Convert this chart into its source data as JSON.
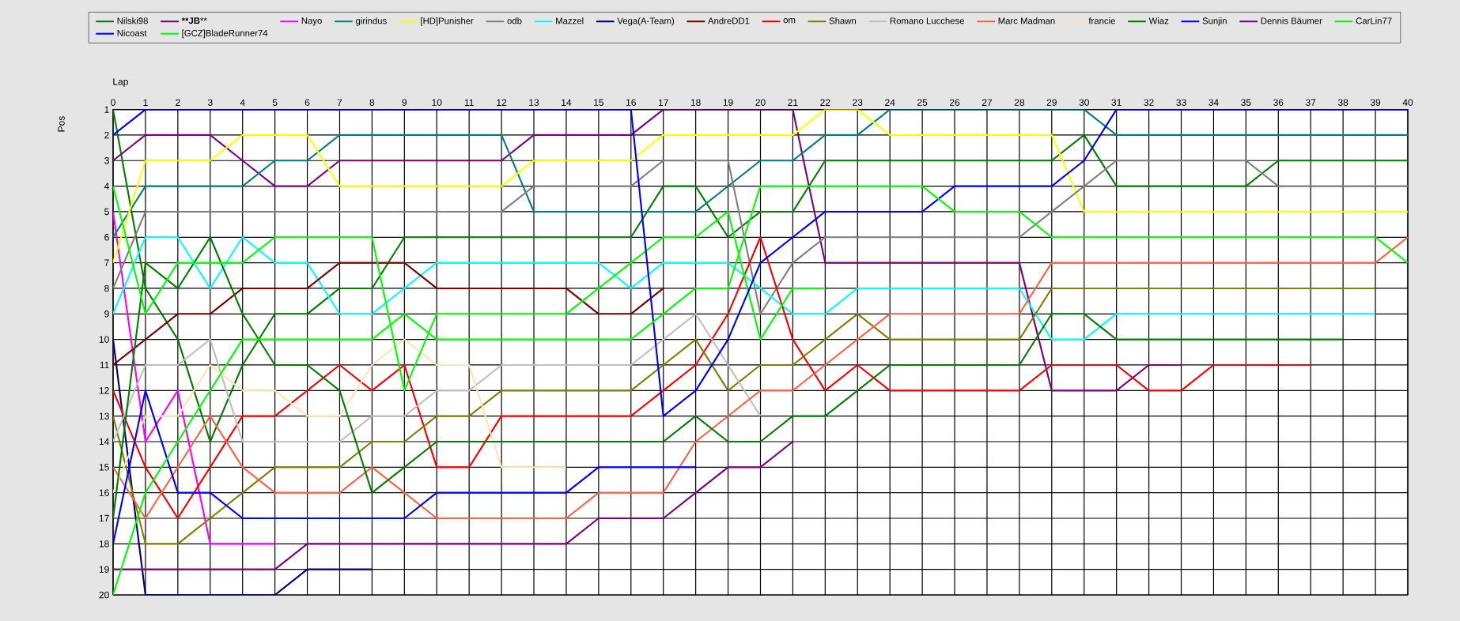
{
  "chart_data": {
    "type": "line",
    "xlabel": "Lap",
    "ylabel": "Pos",
    "x": [
      0,
      1,
      2,
      3,
      4,
      5,
      6,
      7,
      8,
      9,
      10,
      11,
      12,
      13,
      14,
      15,
      16,
      17,
      18,
      19,
      20,
      21,
      22,
      23,
      24,
      25,
      26,
      27,
      28,
      29,
      30,
      31,
      32,
      33,
      34,
      35,
      36,
      37,
      38,
      39,
      40
    ],
    "xlim": [
      0,
      40
    ],
    "xticks": [
      0,
      1,
      2,
      3,
      4,
      5,
      6,
      7,
      8,
      9,
      10,
      11,
      12,
      13,
      14,
      15,
      16,
      17,
      18,
      19,
      20,
      21,
      22,
      23,
      24,
      25,
      26,
      27,
      28,
      29,
      30,
      31,
      32,
      33,
      34,
      35,
      36,
      37,
      38,
      39,
      40
    ],
    "ylim": [
      20,
      1
    ],
    "yticks": [
      1,
      2,
      3,
      4,
      5,
      6,
      7,
      8,
      9,
      10,
      11,
      12,
      13,
      14,
      15,
      16,
      17,
      18,
      19,
      20
    ],
    "grid": true,
    "legend": "top",
    "marker": "none",
    "series": [
      {
        "name": "Nilski98",
        "color": "#008000",
        "values": [
          1,
          8,
          10,
          14,
          11,
          9,
          9,
          8,
          8,
          6,
          6,
          6,
          6,
          6,
          6,
          6,
          6,
          4,
          4,
          6,
          5,
          5,
          3,
          3,
          3,
          3,
          3,
          3,
          3,
          3,
          2,
          4,
          4,
          4,
          4,
          4,
          3,
          3,
          3,
          3,
          3
        ]
      },
      {
        "name": "****JB****",
        "color": "#800080",
        "values": [
          3,
          2,
          2,
          2,
          3,
          4,
          4,
          3,
          3,
          3,
          3,
          3,
          3,
          2,
          2,
          2,
          2,
          1,
          1,
          1,
          1,
          1,
          7,
          7,
          7,
          7,
          7,
          7,
          7,
          12,
          12,
          12,
          11,
          11,
          null,
          null,
          null,
          null,
          null,
          null,
          null
        ]
      },
      {
        "name": "Nayo",
        "color": "#ff00ff",
        "values": [
          5,
          14,
          12,
          18,
          18,
          18,
          null,
          null,
          null,
          null,
          null,
          null,
          null,
          null,
          null,
          null,
          null,
          null,
          null,
          null,
          null,
          null,
          null,
          null,
          null,
          null,
          null,
          null,
          null,
          null,
          null,
          null,
          null,
          null,
          null,
          null,
          null,
          null,
          null,
          null,
          null
        ]
      },
      {
        "name": "girindus",
        "color": "#008080",
        "values": [
          6,
          4,
          4,
          4,
          4,
          3,
          3,
          2,
          2,
          2,
          2,
          2,
          2,
          5,
          5,
          5,
          5,
          5,
          5,
          4,
          3,
          3,
          2,
          2,
          1,
          1,
          1,
          1,
          1,
          1,
          1,
          2,
          2,
          2,
          2,
          2,
          2,
          2,
          2,
          2,
          2
        ]
      },
      {
        "name": "[HD]Punisher",
        "color": "#ffff00",
        "values": [
          7,
          3,
          3,
          3,
          2,
          2,
          2,
          4,
          4,
          4,
          4,
          4,
          4,
          3,
          3,
          3,
          3,
          2,
          2,
          2,
          2,
          2,
          1,
          1,
          2,
          2,
          2,
          2,
          2,
          2,
          5,
          5,
          5,
          5,
          5,
          5,
          5,
          5,
          5,
          5,
          5
        ]
      },
      {
        "name": "odb",
        "color": "#808080",
        "values": [
          8,
          5,
          5,
          5,
          5,
          5,
          5,
          5,
          5,
          5,
          5,
          5,
          5,
          4,
          4,
          4,
          4,
          3,
          3,
          3,
          9,
          7,
          6,
          6,
          6,
          6,
          6,
          6,
          6,
          5,
          4,
          3,
          3,
          3,
          3,
          3,
          4,
          4,
          4,
          4,
          4
        ]
      },
      {
        "name": "Mazzel",
        "color": "#00ffff",
        "values": [
          9,
          6,
          6,
          8,
          6,
          7,
          7,
          9,
          9,
          8,
          7,
          7,
          7,
          7,
          7,
          7,
          8,
          7,
          7,
          7,
          8,
          9,
          9,
          8,
          8,
          8,
          8,
          8,
          8,
          10,
          10,
          9,
          9,
          9,
          9,
          9,
          9,
          9,
          9,
          9,
          null
        ]
      },
      {
        "name": "Vega(A-Team)",
        "color": "#000080",
        "values": [
          10,
          20,
          20,
          20,
          20,
          20,
          19,
          19,
          19,
          null,
          null,
          null,
          null,
          null,
          null,
          null,
          null,
          null,
          null,
          null,
          null,
          null,
          null,
          null,
          null,
          null,
          null,
          null,
          null,
          null,
          null,
          null,
          null,
          null,
          null,
          null,
          null,
          null,
          null,
          null,
          null
        ]
      },
      {
        "name": "AndreDD1",
        "color": "#800000",
        "values": [
          11,
          10,
          9,
          9,
          8,
          8,
          8,
          7,
          7,
          7,
          8,
          8,
          8,
          8,
          8,
          9,
          9,
          8,
          null,
          null,
          null,
          null,
          null,
          null,
          null,
          null,
          null,
          null,
          null,
          null,
          null,
          null,
          null,
          null,
          null,
          null,
          null,
          null,
          null,
          null,
          null
        ]
      },
      {
        "name": "om",
        "color": "#ff0000",
        "values": [
          12,
          15,
          17,
          15,
          13,
          13,
          12,
          11,
          12,
          11,
          15,
          15,
          13,
          13,
          13,
          13,
          13,
          12,
          11,
          9,
          6,
          10,
          12,
          11,
          12,
          12,
          12,
          12,
          12,
          11,
          11,
          11,
          12,
          12,
          11,
          11,
          11,
          11,
          null,
          null,
          null
        ]
      },
      {
        "name": "Shawn",
        "color": "#808000",
        "values": [
          13,
          18,
          18,
          17,
          16,
          15,
          15,
          15,
          14,
          14,
          13,
          13,
          12,
          12,
          12,
          12,
          12,
          11,
          10,
          12,
          11,
          11,
          10,
          9,
          10,
          10,
          10,
          10,
          10,
          8,
          8,
          8,
          8,
          8,
          8,
          8,
          8,
          8,
          8,
          8,
          null
        ]
      },
      {
        "name": "Romano Lucchese",
        "color": "#c0c0c0",
        "values": [
          14,
          11,
          11,
          10,
          14,
          14,
          14,
          14,
          13,
          13,
          12,
          12,
          11,
          11,
          11,
          11,
          11,
          10,
          9,
          11,
          13,
          null,
          null,
          null,
          null,
          null,
          null,
          null,
          null,
          null,
          null,
          null,
          null,
          null,
          null,
          null,
          null,
          null,
          null,
          null,
          null
        ]
      },
      {
        "name": "Marc Madman",
        "color": "#ff6347",
        "values": [
          15,
          17,
          15,
          13,
          15,
          16,
          16,
          16,
          15,
          16,
          17,
          17,
          17,
          17,
          17,
          16,
          16,
          16,
          14,
          13,
          12,
          12,
          11,
          10,
          9,
          9,
          9,
          9,
          9,
          7,
          7,
          7,
          7,
          7,
          7,
          7,
          7,
          7,
          7,
          7,
          6
        ]
      },
      {
        "name": "francie",
        "color": "#ffe4b5",
        "values": [
          16,
          13,
          13,
          11,
          12,
          12,
          13,
          13,
          11,
          10,
          11,
          11,
          15,
          15,
          15,
          null,
          null,
          null,
          null,
          null,
          null,
          null,
          null,
          null,
          null,
          null,
          null,
          null,
          null,
          null,
          null,
          null,
          null,
          null,
          null,
          null,
          null,
          null,
          null,
          null,
          null
        ]
      },
      {
        "name": "Wiaz",
        "color": "#008000",
        "values": [
          17,
          7,
          8,
          6,
          9,
          11,
          11,
          12,
          16,
          15,
          14,
          14,
          14,
          14,
          14,
          14,
          14,
          14,
          13,
          14,
          14,
          13,
          13,
          12,
          11,
          11,
          11,
          11,
          11,
          9,
          9,
          10,
          10,
          10,
          10,
          10,
          10,
          10,
          10,
          null,
          null
        ]
      },
      {
        "name": "Sunjin",
        "color": "#0000ff",
        "values": [
          18,
          12,
          16,
          16,
          17,
          17,
          17,
          17,
          17,
          17,
          16,
          16,
          16,
          16,
          16,
          15,
          15,
          15,
          15,
          null,
          null,
          null,
          null,
          null,
          null,
          null,
          null,
          null,
          null,
          null,
          null,
          null,
          null,
          null,
          null,
          null,
          null,
          null,
          null,
          null,
          null
        ]
      },
      {
        "name": "Dennis Bäumer",
        "color": "#800080",
        "values": [
          19,
          19,
          19,
          19,
          19,
          19,
          18,
          18,
          18,
          18,
          18,
          18,
          18,
          18,
          18,
          17,
          17,
          17,
          16,
          15,
          15,
          14,
          null,
          null,
          null,
          null,
          null,
          null,
          null,
          null,
          null,
          null,
          null,
          null,
          null,
          null,
          null,
          null,
          null,
          null,
          null
        ]
      },
      {
        "name": "CarLin77",
        "color": "#00ff00",
        "values": [
          4,
          9,
          7,
          7,
          7,
          6,
          6,
          6,
          6,
          12,
          9,
          9,
          9,
          9,
          9,
          8,
          7,
          6,
          6,
          5,
          10,
          8,
          8,
          null,
          null,
          null,
          null,
          null,
          null,
          null,
          null,
          null,
          null,
          null,
          null,
          null,
          null,
          null,
          null,
          null,
          null
        ]
      },
      {
        "name": "Nicoast",
        "color": "#0000ff",
        "values": [
          2,
          1,
          1,
          1,
          1,
          1,
          1,
          1,
          1,
          1,
          1,
          1,
          1,
          1,
          1,
          1,
          1,
          13,
          12,
          10,
          7,
          6,
          5,
          5,
          5,
          5,
          4,
          4,
          4,
          4,
          3,
          1,
          1,
          1,
          1,
          1,
          1,
          1,
          1,
          1,
          1
        ]
      },
      {
        "name": "[GCZ]BladeRunner74",
        "color": "#00ff00",
        "values": [
          20,
          16,
          14,
          12,
          10,
          10,
          10,
          10,
          10,
          9,
          10,
          10,
          10,
          10,
          10,
          10,
          10,
          9,
          8,
          8,
          4,
          4,
          4,
          4,
          4,
          4,
          5,
          5,
          5,
          6,
          6,
          6,
          6,
          6,
          6,
          6,
          6,
          6,
          6,
          6,
          7
        ]
      }
    ]
  }
}
